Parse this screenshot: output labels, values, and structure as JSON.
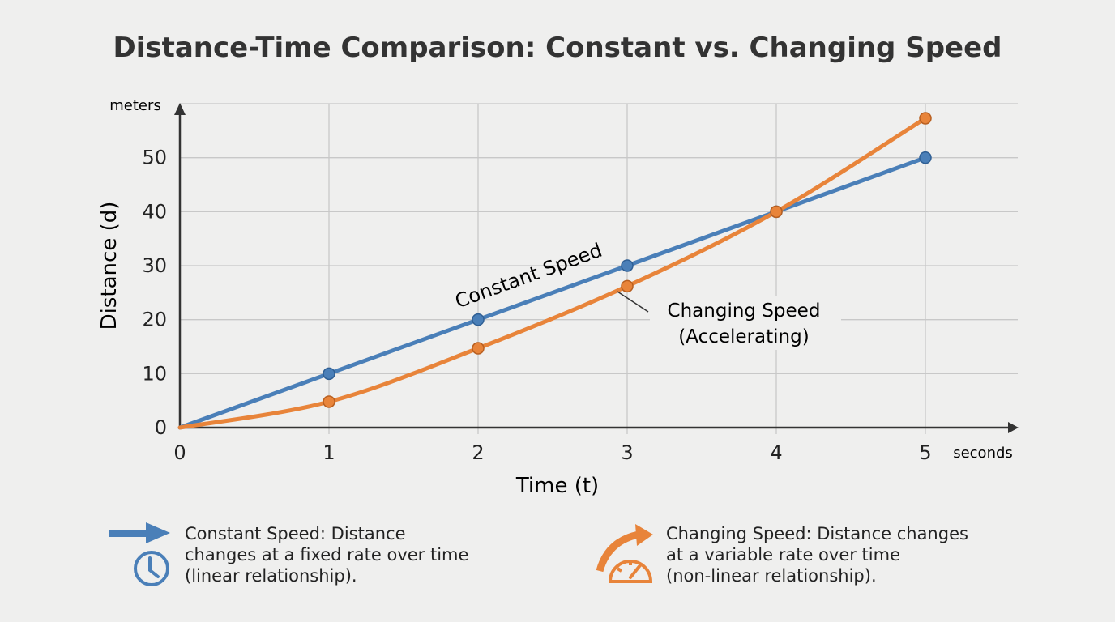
{
  "chart_data": {
    "type": "line",
    "title": "Distance-Time Comparison: Constant vs. Changing Speed",
    "xlabel": "Time (t)",
    "ylabel": "Distance (d)",
    "x_unit": "seconds",
    "y_unit": "meters",
    "xlim": [
      0,
      5
    ],
    "ylim": [
      0,
      60
    ],
    "x_ticks": [
      "0",
      "1",
      "2",
      "3",
      "4",
      "5"
    ],
    "y_ticks": [
      "0",
      "10",
      "20",
      "30",
      "40",
      "50"
    ],
    "grid": true,
    "x": [
      0,
      1,
      2,
      3,
      4,
      5
    ],
    "series": [
      {
        "name": "Constant Speed",
        "color": "#4a7fb8",
        "values": [
          0,
          10,
          20,
          30,
          40,
          50
        ]
      },
      {
        "name": "Changing Speed (Accelerating)",
        "color": "#e8843a",
        "values": [
          0,
          4.8,
          14.7,
          26.2,
          40,
          57.3
        ]
      }
    ],
    "annotations": {
      "constant": "Constant Speed",
      "changing_line1": "Changing Speed",
      "changing_line2": "(Accelerating)"
    }
  },
  "legend": [
    {
      "icon": "arrow-right-icon, clock-icon",
      "color": "#4a7fb8",
      "lines": [
        "Constant Speed: Distance",
        "changes at a fixed rate over time",
        "(linear relationship)."
      ]
    },
    {
      "icon": "curved-arrow-icon, speedometer-icon",
      "color": "#e8843a",
      "lines": [
        "Changing Speed: Distance changes",
        "at a variable rate over time",
        "(non-linear relationship)."
      ]
    }
  ]
}
